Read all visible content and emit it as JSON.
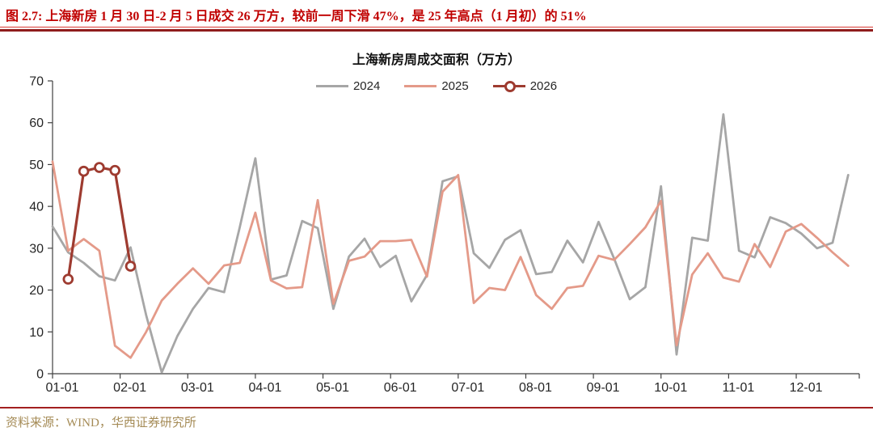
{
  "header": {
    "figure_label": "图 2.7:",
    "title": "上海新房 1 月 30 日-2 月 5 日成交 26 万方，较前一周下滑 47%，是 25 年高点（1 月初）的 51%"
  },
  "footer": {
    "source": "资料来源：WIND，华西证券研究所"
  },
  "colors": {
    "header_red": "#c00000",
    "rule_dark_red": "#8f1c1c",
    "source_gold": "#a58b56",
    "axis": "#404040",
    "series_2024": "#a6a6a6",
    "series_2025": "#e49a89",
    "series_2026": "#9e3b30"
  },
  "chart_data": {
    "type": "line",
    "title": "上海新房周成交面积（万方）",
    "xlabel": "",
    "ylabel": "",
    "ylim": [
      0,
      70
    ],
    "yticks": [
      0,
      10,
      20,
      30,
      40,
      50,
      60,
      70
    ],
    "x_axis_tick_labels": [
      "01-01",
      "02-01",
      "03-01",
      "04-01",
      "05-01",
      "06-01",
      "07-01",
      "08-01",
      "09-01",
      "10-01",
      "11-01",
      "12-01"
    ],
    "x_unit": "week (MM-DD)",
    "weeks_total": 52,
    "grid": false,
    "legend_position": "top-center",
    "series": [
      {
        "name": "2024",
        "color": "#a6a6a6",
        "marker": "none",
        "start_week": 1,
        "values": [
          35.2,
          29,
          26.5,
          23.3,
          22.3,
          30.2,
          14,
          0.3,
          9,
          15.5,
          20.5,
          19.5,
          35,
          51.5,
          22.5,
          23.5,
          36.5,
          34.8,
          15.5,
          28,
          32.3,
          25.5,
          28.2,
          17.3,
          23.6,
          46,
          47.2,
          28.8,
          25.3,
          32,
          34.3,
          23.8,
          24.3,
          31.8,
          26.6,
          36.3,
          27.5,
          17.8,
          20.7,
          44.8,
          4.6,
          32.5,
          31.8,
          62,
          29.4,
          27.8,
          37.4,
          36,
          33.5,
          30,
          31.3,
          47.5
        ]
      },
      {
        "name": "2025",
        "color": "#e49a89",
        "marker": "none",
        "start_week": 1,
        "values": [
          50.7,
          29.4,
          32.2,
          29.4,
          6.7,
          3.8,
          10,
          17.5,
          21.5,
          25.2,
          21.5,
          25.9,
          26.5,
          38.5,
          22.3,
          20.4,
          20.7,
          41.5,
          16.7,
          27,
          28,
          31.7,
          31.7,
          32,
          23.2,
          43.5,
          47.5,
          16.9,
          20.5,
          20,
          27.9,
          18.8,
          15.5,
          20.5,
          21,
          28.2,
          27.2,
          31,
          35,
          41.3,
          6.8,
          23.7,
          28.8,
          23,
          22,
          31,
          25.5,
          34,
          35.8,
          32.5,
          29,
          25.8
        ]
      },
      {
        "name": "2026",
        "color": "#9e3b30",
        "marker": "open-circle",
        "start_week": 2,
        "values": [
          22.6,
          48.4,
          49.3,
          48.6,
          25.7
        ]
      }
    ]
  }
}
